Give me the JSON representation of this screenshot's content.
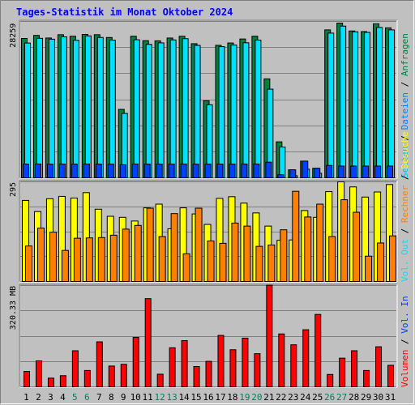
{
  "chart_data": [
    {
      "type": "bar",
      "title": "Tages-Statistik im Monat Oktober 2024",
      "ylabel_ticks": [
        "28259"
      ],
      "legend": [
        "Anfragen",
        "Dateien",
        "Seiten"
      ],
      "legend_separator": " / ",
      "categories": [
        "1",
        "2",
        "3",
        "4",
        "5",
        "6",
        "7",
        "8",
        "9",
        "10",
        "11",
        "12",
        "13",
        "14",
        "15",
        "16",
        "17",
        "18",
        "19",
        "20",
        "21",
        "22",
        "23",
        "24",
        "25",
        "26",
        "27",
        "28",
        "29",
        "30",
        "31"
      ],
      "weekend_days": [
        "5",
        "6",
        "12",
        "13",
        "19",
        "20",
        "26",
        "27"
      ],
      "ylim": [
        0,
        30600
      ],
      "series": [
        {
          "name": "Anfragen",
          "values": [
            27270,
            27870,
            27360,
            28010,
            27710,
            28060,
            28010,
            27460,
            13390,
            27710,
            26840,
            26810,
            27360,
            27710,
            26250,
            15070,
            25930,
            26390,
            27170,
            27710,
            19370,
            7040,
            1560,
            3260,
            1860,
            28950,
            30280,
            28740,
            28620,
            30140,
            29350
          ]
        },
        {
          "name": "Dateien",
          "values": [
            26380,
            27300,
            27130,
            27590,
            26910,
            27770,
            27470,
            26940,
            12600,
            27020,
            26120,
            26410,
            26990,
            27230,
            25920,
            14310,
            25670,
            25980,
            26430,
            26960,
            17350,
            6030,
            410,
            1680,
            890,
            28320,
            29690,
            28580,
            28460,
            29430,
            28950
          ]
        },
        {
          "name": "Seiten",
          "values": [
            2680,
            2700,
            2680,
            2700,
            2680,
            2700,
            2680,
            2680,
            2550,
            2700,
            2680,
            2680,
            2680,
            2700,
            2680,
            2680,
            2680,
            2680,
            2700,
            2700,
            3060,
            600,
            1560,
            3260,
            1860,
            2420,
            2300,
            2300,
            2300,
            2300,
            2300
          ]
        }
      ],
      "colors": {
        "Anfragen": "#008040",
        "Dateien": "#00e0ff",
        "Seiten": "#0040ff"
      }
    },
    {
      "type": "bar",
      "ylabel_ticks": [
        "295"
      ],
      "legend": [
        "Besuche",
        "Rechner"
      ],
      "legend_separator": " / ",
      "categories": [
        "1",
        "2",
        "3",
        "4",
        "5",
        "6",
        "7",
        "8",
        "9",
        "10",
        "11",
        "12",
        "13",
        "14",
        "15",
        "16",
        "17",
        "18",
        "19",
        "20",
        "21",
        "22",
        "23",
        "24",
        "25",
        "26",
        "27",
        "28",
        "29",
        "30",
        "31"
      ],
      "ylim": [
        0,
        295
      ],
      "series": [
        {
          "name": "Besuche",
          "values": [
            240,
            207,
            245,
            252,
            247,
            263,
            214,
            193,
            190,
            179,
            218,
            229,
            156,
            218,
            200,
            169,
            246,
            251,
            232,
            203,
            164,
            122,
            123,
            210,
            190,
            266,
            295,
            280,
            250,
            265,
            287
          ]
        },
        {
          "name": "Rechner",
          "values": [
            105,
            158,
            146,
            92,
            128,
            129,
            130,
            137,
            155,
            166,
            217,
            133,
            201,
            82,
            217,
            120,
            113,
            173,
            164,
            104,
            108,
            153,
            267,
            191,
            229,
            133,
            242,
            205,
            75,
            114,
            135
          ]
        }
      ],
      "colors": {
        "Besuche": "#ffff00",
        "Rechner": "#ff8000"
      }
    },
    {
      "type": "bar",
      "ylabel_ticks": [
        "320.33 MB"
      ],
      "legend": [
        "Volumen",
        "Vol. In",
        "Vol. Out"
      ],
      "legend_separator": " / ",
      "categories": [
        "1",
        "2",
        "3",
        "4",
        "5",
        "6",
        "7",
        "8",
        "9",
        "10",
        "11",
        "12",
        "13",
        "14",
        "15",
        "16",
        "17",
        "18",
        "19",
        "20",
        "21",
        "22",
        "23",
        "24",
        "25",
        "26",
        "27",
        "28",
        "29",
        "30",
        "31"
      ],
      "ylim": [
        0,
        410
      ],
      "series": [
        {
          "name": "Volumen",
          "values": [
            62,
            105,
            35,
            45,
            146,
            66,
            182,
            84,
            91,
            200,
            357,
            51,
            158,
            187,
            82,
            103,
            208,
            150,
            197,
            134,
            411,
            214,
            170,
            231,
            293,
            50,
            116,
            146,
            66,
            162,
            87
          ]
        }
      ],
      "colors": {
        "Volumen": "#ff0000"
      }
    }
  ],
  "colors": {
    "background": "#c0c0c0",
    "title": "#0000ff",
    "weekday_label": "#000000",
    "weekend_label": "#00805c",
    "legend_anfragen": "#008040",
    "legend_dateien": "#0080ff",
    "legend_seiten": "#00c0ff",
    "legend_besuche": "#ffff00",
    "legend_rechner": "#ff8000",
    "legend_volout": "#00e0ff",
    "legend_volin": "#0040ff",
    "legend_volumen": "#ff0000",
    "legend_separator": "#000000"
  }
}
